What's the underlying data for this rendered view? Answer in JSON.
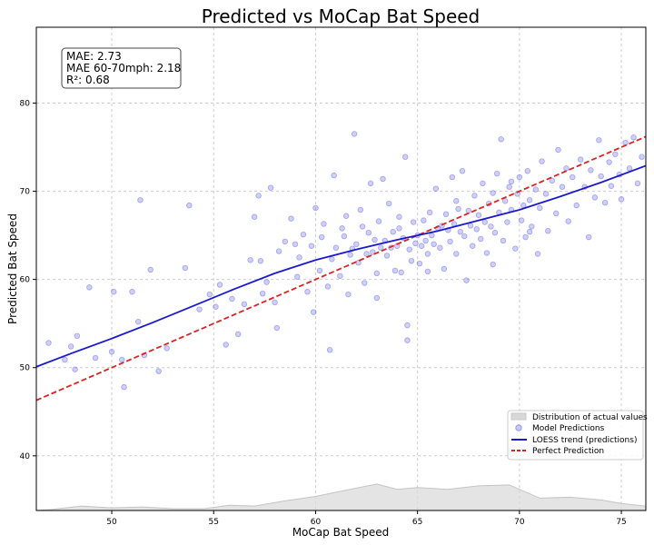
{
  "chart_data": {
    "type": "scatter",
    "title": "Predicted vs MoCap Bat Speed",
    "xlabel": "MoCap Bat Speed",
    "ylabel": "Predicted Bat Speed",
    "xlim": [
      46.3,
      76.2
    ],
    "ylim": [
      33.8,
      88.6
    ],
    "x_ticks": [
      50,
      55,
      60,
      65,
      70,
      75
    ],
    "y_ticks": [
      40,
      50,
      60,
      70,
      80
    ],
    "grid": true,
    "stats_box": {
      "lines": [
        "MAE: 2.73",
        "MAE 60-70mph: 2.18",
        "R²: 0.68"
      ],
      "placement": "top-left"
    },
    "legend": {
      "placement": "lower-right",
      "entries": [
        {
          "label": "Distribution of actual values",
          "kind": "area"
        },
        {
          "label": "Model Predictions",
          "kind": "scatter"
        },
        {
          "label": "LOESS trend (predictions)",
          "kind": "line"
        },
        {
          "label": "Perfect Prediction",
          "kind": "dashed-line"
        }
      ]
    },
    "colors": {
      "scatter": "#6464e6",
      "loess": "#1a1acc",
      "perfect": "#dd2222",
      "distribution": "#d8d8d8",
      "grid": "#cccccc"
    },
    "series": [
      {
        "name": "Model Predictions",
        "points": [
          [
            46.9,
            52.8
          ],
          [
            47.7,
            50.9
          ],
          [
            48.0,
            52.4
          ],
          [
            48.3,
            53.6
          ],
          [
            48.2,
            49.8
          ],
          [
            48.9,
            59.1
          ],
          [
            49.2,
            51.1
          ],
          [
            50.0,
            51.8
          ],
          [
            50.1,
            58.6
          ],
          [
            50.5,
            50.9
          ],
          [
            50.6,
            47.8
          ],
          [
            51.0,
            58.6
          ],
          [
            51.3,
            55.2
          ],
          [
            51.4,
            69.0
          ],
          [
            51.6,
            51.4
          ],
          [
            51.9,
            61.1
          ],
          [
            52.3,
            49.6
          ],
          [
            52.7,
            52.2
          ],
          [
            53.6,
            61.3
          ],
          [
            53.8,
            68.4
          ],
          [
            54.3,
            56.6
          ],
          [
            54.8,
            58.3
          ],
          [
            55.1,
            56.9
          ],
          [
            55.3,
            59.4
          ],
          [
            55.6,
            52.6
          ],
          [
            55.9,
            57.8
          ],
          [
            56.2,
            53.8
          ],
          [
            56.5,
            57.2
          ],
          [
            56.8,
            62.2
          ],
          [
            57.0,
            67.1
          ],
          [
            57.2,
            69.5
          ],
          [
            57.3,
            62.1
          ],
          [
            57.6,
            59.7
          ],
          [
            57.8,
            70.4
          ],
          [
            58.0,
            57.4
          ],
          [
            58.2,
            63.2
          ],
          [
            58.1,
            54.5
          ],
          [
            58.5,
            64.3
          ],
          [
            58.8,
            66.9
          ],
          [
            59.1,
            60.3
          ],
          [
            59.2,
            62.5
          ],
          [
            59.4,
            65.1
          ],
          [
            59.6,
            58.6
          ],
          [
            59.8,
            63.8
          ],
          [
            59.9,
            56.3
          ],
          [
            60.0,
            68.1
          ],
          [
            60.2,
            61.0
          ],
          [
            60.3,
            64.8
          ],
          [
            60.4,
            66.3
          ],
          [
            60.6,
            59.2
          ],
          [
            60.7,
            52.0
          ],
          [
            60.8,
            62.3
          ],
          [
            60.9,
            71.8
          ],
          [
            61.0,
            63.6
          ],
          [
            61.2,
            60.4
          ],
          [
            61.3,
            65.8
          ],
          [
            61.5,
            67.2
          ],
          [
            61.6,
            58.3
          ],
          [
            61.7,
            62.8
          ],
          [
            61.8,
            63.5
          ],
          [
            61.9,
            76.5
          ],
          [
            62.0,
            64.0
          ],
          [
            62.1,
            61.9
          ],
          [
            62.3,
            66.0
          ],
          [
            62.4,
            59.6
          ],
          [
            62.5,
            62.9
          ],
          [
            62.6,
            65.3
          ],
          [
            62.7,
            70.9
          ],
          [
            62.8,
            63.1
          ],
          [
            62.9,
            64.5
          ],
          [
            63.0,
            57.9
          ],
          [
            63.1,
            66.6
          ],
          [
            63.2,
            63.6
          ],
          [
            63.3,
            71.4
          ],
          [
            63.4,
            64.4
          ],
          [
            63.5,
            62.7
          ],
          [
            63.6,
            68.6
          ],
          [
            63.7,
            63.6
          ],
          [
            63.8,
            65.4
          ],
          [
            63.9,
            61.0
          ],
          [
            64.0,
            63.8
          ],
          [
            64.1,
            67.1
          ],
          [
            64.2,
            60.8
          ],
          [
            64.3,
            64.7
          ],
          [
            64.4,
            73.9
          ],
          [
            64.5,
            54.8
          ],
          [
            64.5,
            53.1
          ],
          [
            64.6,
            63.4
          ],
          [
            64.7,
            62.1
          ],
          [
            64.8,
            66.5
          ],
          [
            64.9,
            64.1
          ],
          [
            65.0,
            65.0
          ],
          [
            65.1,
            61.8
          ],
          [
            65.2,
            63.8
          ],
          [
            65.3,
            66.7
          ],
          [
            65.4,
            64.4
          ],
          [
            65.5,
            62.9
          ],
          [
            65.6,
            67.6
          ],
          [
            65.7,
            65.0
          ],
          [
            65.8,
            64.0
          ],
          [
            65.9,
            70.3
          ],
          [
            66.0,
            65.8
          ],
          [
            66.1,
            63.6
          ],
          [
            66.2,
            66.1
          ],
          [
            66.3,
            61.2
          ],
          [
            66.4,
            67.4
          ],
          [
            66.5,
            65.6
          ],
          [
            66.6,
            64.3
          ],
          [
            66.7,
            71.6
          ],
          [
            66.8,
            66.3
          ],
          [
            66.9,
            62.9
          ],
          [
            67.0,
            68.0
          ],
          [
            67.1,
            65.4
          ],
          [
            67.2,
            72.3
          ],
          [
            67.3,
            64.9
          ],
          [
            67.4,
            59.9
          ],
          [
            67.5,
            67.8
          ],
          [
            67.6,
            66.1
          ],
          [
            67.7,
            63.8
          ],
          [
            67.8,
            69.5
          ],
          [
            67.9,
            65.7
          ],
          [
            68.0,
            67.3
          ],
          [
            68.1,
            64.6
          ],
          [
            68.2,
            70.9
          ],
          [
            68.3,
            66.5
          ],
          [
            68.4,
            63.0
          ],
          [
            68.5,
            68.6
          ],
          [
            68.6,
            66.0
          ],
          [
            68.7,
            69.8
          ],
          [
            68.8,
            65.3
          ],
          [
            68.9,
            72.0
          ],
          [
            69.0,
            67.6
          ],
          [
            69.1,
            75.9
          ],
          [
            69.2,
            64.4
          ],
          [
            69.3,
            68.9
          ],
          [
            69.4,
            66.5
          ],
          [
            69.5,
            70.5
          ],
          [
            69.6,
            67.9
          ],
          [
            69.8,
            63.5
          ],
          [
            69.9,
            69.7
          ],
          [
            70.0,
            71.6
          ],
          [
            70.1,
            66.7
          ],
          [
            70.2,
            68.4
          ],
          [
            70.3,
            64.8
          ],
          [
            70.4,
            72.3
          ],
          [
            70.5,
            69.0
          ],
          [
            70.6,
            66.0
          ],
          [
            70.8,
            70.2
          ],
          [
            70.9,
            62.9
          ],
          [
            71.0,
            68.1
          ],
          [
            71.1,
            73.4
          ],
          [
            71.3,
            69.7
          ],
          [
            71.4,
            65.5
          ],
          [
            71.6,
            71.2
          ],
          [
            71.8,
            67.5
          ],
          [
            71.9,
            74.7
          ],
          [
            72.1,
            70.5
          ],
          [
            72.3,
            72.6
          ],
          [
            72.4,
            66.6
          ],
          [
            72.6,
            71.6
          ],
          [
            72.8,
            68.4
          ],
          [
            73.0,
            73.6
          ],
          [
            73.2,
            70.5
          ],
          [
            73.4,
            64.8
          ],
          [
            73.5,
            72.4
          ],
          [
            73.7,
            69.3
          ],
          [
            73.9,
            75.8
          ],
          [
            74.0,
            71.7
          ],
          [
            74.2,
            68.7
          ],
          [
            74.4,
            73.3
          ],
          [
            74.5,
            70.6
          ],
          [
            74.7,
            74.2
          ],
          [
            74.9,
            71.9
          ],
          [
            75.0,
            69.1
          ],
          [
            75.2,
            75.5
          ],
          [
            75.4,
            72.6
          ],
          [
            75.6,
            76.1
          ],
          [
            75.8,
            70.9
          ],
          [
            76.0,
            73.9
          ],
          [
            70.5,
            65.4
          ],
          [
            62.2,
            67.9
          ],
          [
            59.0,
            64.0
          ],
          [
            57.4,
            58.4
          ],
          [
            65.5,
            60.9
          ],
          [
            68.7,
            61.7
          ],
          [
            61.4,
            64.9
          ],
          [
            66.9,
            68.9
          ],
          [
            69.6,
            71.1
          ],
          [
            63.0,
            60.7
          ],
          [
            64.1,
            65.8
          ]
        ]
      },
      {
        "name": "LOESS trend (predictions)",
        "points": [
          [
            46.3,
            50.1
          ],
          [
            48,
            51.6
          ],
          [
            50,
            53.3
          ],
          [
            52,
            55.1
          ],
          [
            54,
            57.0
          ],
          [
            56,
            58.9
          ],
          [
            58,
            60.7
          ],
          [
            60,
            62.2
          ],
          [
            62,
            63.4
          ],
          [
            64,
            64.5
          ],
          [
            66,
            65.5
          ],
          [
            68,
            66.7
          ],
          [
            70,
            67.9
          ],
          [
            72,
            69.4
          ],
          [
            74,
            71.0
          ],
          [
            76.2,
            72.9
          ]
        ]
      },
      {
        "name": "Perfect Prediction",
        "points": [
          [
            46.3,
            46.3
          ],
          [
            76.2,
            76.2
          ]
        ]
      },
      {
        "name": "Distribution of actual values",
        "points": [
          [
            46.3,
            33.8
          ],
          [
            47.0,
            33.9
          ],
          [
            48.5,
            34.3
          ],
          [
            50.0,
            34.1
          ],
          [
            51.5,
            34.2
          ],
          [
            53.0,
            34.0
          ],
          [
            54.5,
            34.0
          ],
          [
            55.8,
            34.4
          ],
          [
            57.0,
            34.3
          ],
          [
            58.5,
            34.9
          ],
          [
            60.0,
            35.4
          ],
          [
            61.5,
            36.1
          ],
          [
            63.0,
            36.8
          ],
          [
            64.0,
            36.2
          ],
          [
            65.0,
            36.4
          ],
          [
            66.5,
            36.2
          ],
          [
            68.0,
            36.6
          ],
          [
            69.5,
            36.7
          ],
          [
            71.0,
            35.2
          ],
          [
            72.5,
            35.3
          ],
          [
            74.0,
            35.0
          ],
          [
            75.0,
            34.6
          ],
          [
            76.2,
            34.3
          ]
        ]
      }
    ]
  }
}
